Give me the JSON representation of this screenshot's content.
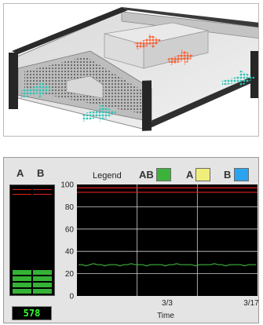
{
  "meter": {
    "col_a_label": "A",
    "col_b_label": "B",
    "level_fraction": 0.28,
    "readout": "578",
    "fill_color": "#36b236"
  },
  "legend": {
    "title": "Legend",
    "items": [
      {
        "label": "AB",
        "color": "#3cb23c"
      },
      {
        "label": "A",
        "color": "#f0ee7a"
      },
      {
        "label": "B",
        "color": "#2ba3ee"
      }
    ]
  },
  "chart_data": {
    "type": "line",
    "xlabel": "Time",
    "x_ticks": [
      "3/3",
      "3/17"
    ],
    "ylim": [
      0,
      100
    ],
    "y_ticks": [
      0,
      20,
      40,
      60,
      80,
      100
    ],
    "grid": true,
    "threshold_lines": [
      {
        "value": 97,
        "color": "#e02020"
      },
      {
        "value": 93,
        "color": "#e02020"
      }
    ],
    "series": [
      {
        "name": "AB",
        "color": "#3cb23c",
        "values": [
          28,
          28,
          27,
          28,
          29,
          28,
          28,
          27,
          28,
          28,
          28,
          27,
          28,
          28,
          29,
          28,
          28,
          28,
          27,
          28,
          28,
          28,
          28,
          27,
          28,
          28,
          29,
          28,
          28,
          28,
          28,
          27,
          28,
          28,
          28,
          28,
          29,
          28,
          28,
          27,
          28,
          28,
          28,
          28,
          27,
          28,
          28,
          28
        ]
      }
    ]
  },
  "illustration": {
    "arrow_colors": {
      "intake": "#2ec4b6",
      "exhaust": "#ff5a2a"
    }
  }
}
